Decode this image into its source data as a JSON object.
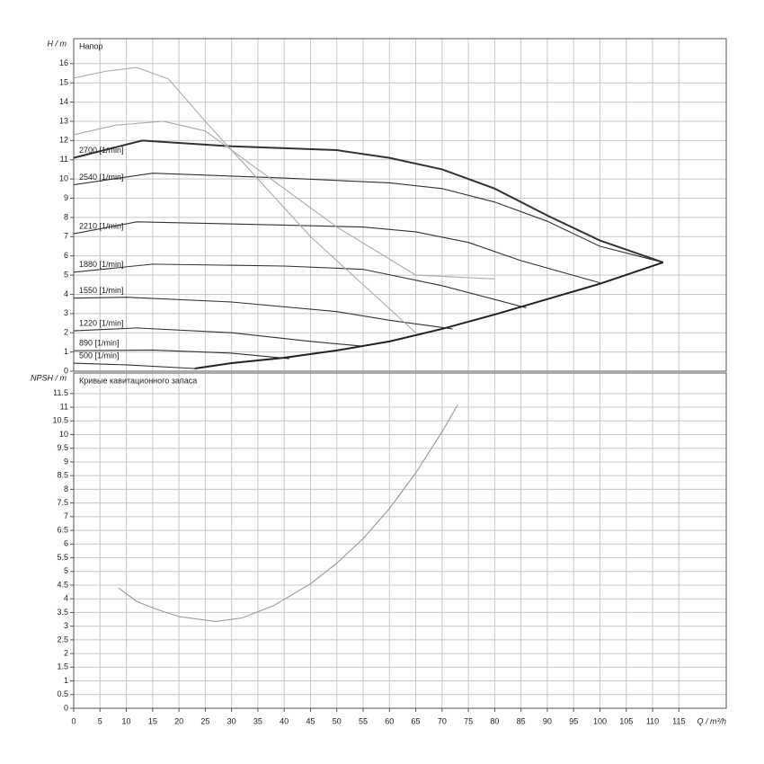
{
  "chart_data": [
    {
      "type": "line",
      "title": "Напор",
      "y_label": "H / m",
      "grid": true,
      "xlim": [
        0,
        124
      ],
      "ylim": [
        0,
        17.3
      ],
      "yticks": [
        0,
        1,
        2,
        3,
        4,
        5,
        6,
        7,
        8,
        9,
        10,
        11,
        12,
        13,
        14,
        15,
        16
      ],
      "series": [
        {
          "name": "2700 [1/min]",
          "color": "#333333",
          "x": [
            0,
            13,
            30,
            50,
            60,
            70,
            80,
            90,
            100,
            112
          ],
          "values": [
            11.1,
            12.0,
            11.7,
            11.5,
            11.1,
            10.5,
            9.5,
            8.1,
            6.8,
            5.66
          ]
        },
        {
          "name": "2540 [1/min]",
          "color": "#333333",
          "x": [
            0,
            15,
            40,
            60,
            70,
            80,
            90,
            100,
            112
          ],
          "values": [
            9.7,
            10.3,
            10.05,
            9.8,
            9.5,
            8.8,
            7.8,
            6.5,
            5.66
          ]
        },
        {
          "name": "2210 [1/min]",
          "color": "#333333",
          "x": [
            0,
            12,
            40,
            55,
            65,
            75,
            85,
            100
          ],
          "values": [
            7.15,
            7.77,
            7.6,
            7.5,
            7.25,
            6.7,
            5.75,
            4.6
          ]
        },
        {
          "name": "1880 [1/min]",
          "color": "#333333",
          "x": [
            0,
            15,
            40,
            55,
            70,
            86
          ],
          "values": [
            5.15,
            5.57,
            5.47,
            5.3,
            4.45,
            3.3
          ]
        },
        {
          "name": "1550 [1/min]",
          "color": "#333333",
          "x": [
            0,
            10,
            30,
            50,
            60,
            72
          ],
          "values": [
            3.8,
            3.85,
            3.6,
            3.1,
            2.65,
            2.2
          ]
        },
        {
          "name": "1220 [1/min]",
          "color": "#333333",
          "x": [
            0,
            12,
            30,
            45,
            55
          ],
          "values": [
            2.1,
            2.25,
            2.0,
            1.55,
            1.3
          ]
        },
        {
          "name": "890 [1/min]",
          "color": "#333333",
          "x": [
            0,
            15,
            30,
            41
          ],
          "values": [
            1.07,
            1.1,
            0.94,
            0.65
          ]
        },
        {
          "name": "500 [1/min]",
          "color": "#333333",
          "x": [
            0,
            10,
            23
          ],
          "values": [
            0.42,
            0.33,
            0.14
          ]
        },
        {
          "color": "#222222",
          "x": [
            23,
            30,
            40,
            50,
            60,
            70,
            80,
            90,
            100,
            112
          ],
          "values": [
            0.14,
            0.42,
            0.7,
            1.08,
            1.55,
            2.2,
            2.95,
            3.75,
            4.55,
            5.66
          ]
        },
        {
          "color": "#aaaaaa",
          "x": [
            0,
            6,
            12,
            18,
            25,
            35,
            45,
            55,
            65
          ],
          "values": [
            15.25,
            15.6,
            15.8,
            15.2,
            13,
            10,
            7,
            4.5,
            2
          ]
        },
        {
          "color": "#aaaaaa",
          "x": [
            0,
            8,
            17,
            25,
            35,
            50,
            65,
            80
          ],
          "values": [
            12.3,
            12.8,
            13,
            12.5,
            10.5,
            7.5,
            5,
            4.8
          ]
        }
      ]
    },
    {
      "type": "line",
      "title": "Кривые кавитационного запаса",
      "y_label": "NPSH / m",
      "x_label": "Q / m³/h",
      "grid": true,
      "xlim": [
        0,
        124
      ],
      "ylim": [
        0,
        12.25
      ],
      "xticks": [
        0,
        5,
        10,
        15,
        20,
        25,
        30,
        35,
        40,
        45,
        50,
        55,
        60,
        65,
        70,
        75,
        80,
        85,
        90,
        95,
        100,
        105,
        110,
        115
      ],
      "yticks": [
        0,
        0.5,
        1,
        1.5,
        2,
        2.5,
        3,
        3.5,
        4,
        4.5,
        5,
        5.5,
        6,
        6.5,
        7,
        7.5,
        8,
        8.5,
        9,
        9.5,
        10,
        10.5,
        11,
        11.5
      ],
      "series": [
        {
          "color": "#999999",
          "x": [
            8.5,
            12,
            16,
            20,
            27,
            32,
            38,
            45,
            50,
            55,
            60,
            65,
            70,
            73
          ],
          "values": [
            4.4,
            3.9,
            3.6,
            3.35,
            3.17,
            3.3,
            3.75,
            4.55,
            5.3,
            6.2,
            7.3,
            8.6,
            10.1,
            11.1
          ]
        }
      ]
    }
  ]
}
